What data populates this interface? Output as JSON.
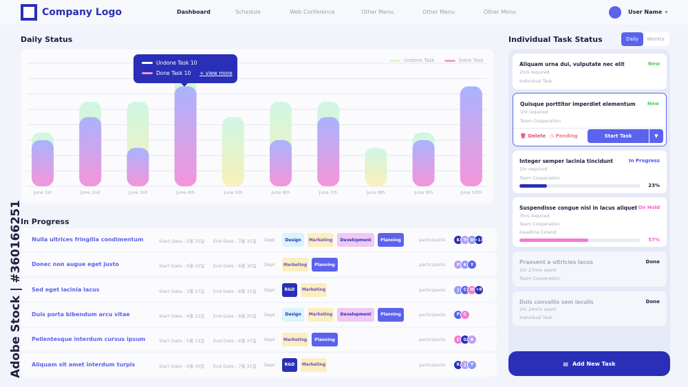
{
  "header": {
    "logo_text": "Company Logo",
    "nav": [
      "Dashboard",
      "Schedule",
      "Web Conference",
      "Other Menu",
      "Other Menu",
      "Other Menu"
    ],
    "user_name": "User Name"
  },
  "daily_status": {
    "title": "Daily Status",
    "legend": [
      "Undone Task",
      "Done Task"
    ],
    "tooltip": {
      "line1": "Undone Task 10",
      "line2": "Done Task 10",
      "link": "+ view more"
    },
    "colors": {
      "undone": "#bff2d8",
      "done_top": "#a9b3ff",
      "done_bottom": "#f595d8",
      "accent": "#2a2fb7"
    }
  },
  "chart_data": {
    "type": "bar",
    "categories": [
      "June 1st",
      "June 2nd",
      "June 3rd",
      "June 4th",
      "June 5th",
      "June 6th",
      "June 7th",
      "June 8th",
      "June 9th",
      "June 10th"
    ],
    "series": [
      {
        "name": "Undone Task",
        "values": [
          7,
          11,
          11,
          14,
          9,
          11,
          11,
          5,
          7,
          13
        ]
      },
      {
        "name": "Done Task",
        "values": [
          6,
          9,
          5,
          13,
          0,
          6,
          9,
          0,
          6,
          13
        ]
      }
    ],
    "ylim": [
      0,
      16
    ],
    "grid": true,
    "legend_position": "top-right"
  },
  "in_progress": {
    "title": "In Progress",
    "rows": [
      {
        "title": "Nulla ultrices fringilla condimentum",
        "start": "Start Date : 5월 25일",
        "end": "End Date : 7월 31일",
        "dept": "Dept",
        "tags": [
          "Design",
          "Marketing",
          "Development",
          "Planning"
        ],
        "participants": "participants",
        "avatars": [
          "K",
          "Y",
          "D",
          "+13"
        ]
      },
      {
        "title": "Donec non augue eget justo",
        "start": "Start Date : 4월 02일",
        "end": "End Date : 6월 30일",
        "dept": "Dept",
        "tags": [
          "Marketing",
          "Planning"
        ],
        "participants": "participants",
        "avatars": [
          "P",
          "K",
          "Y"
        ]
      },
      {
        "title": "Sed eget lacinia lacus",
        "start": "Start Date : 3월 17일",
        "end": "End Date : 8월 31일",
        "dept": "Dept",
        "tags": [
          "R&D",
          "Marketing"
        ],
        "participants": "participants",
        "avatars": [
          "J",
          "C",
          "H",
          "+8"
        ]
      },
      {
        "title": "Duis porta bibendum arcu vitae",
        "start": "Start Date : 4월 22일",
        "end": "End Date : 8월 20일",
        "dept": "Dept",
        "tags": [
          "Design",
          "Marketing",
          "Development",
          "Planning"
        ],
        "participants": "participants",
        "avatars": [
          "P",
          "C"
        ]
      },
      {
        "title": "Pellentesque interdum cursus ipsum",
        "start": "Start Date : 5월 11일",
        "end": "End Date : 6월 27일",
        "dept": "Dept",
        "tags": [
          "Marketing",
          "Planning"
        ],
        "participants": "participants",
        "avatars": [
          "C",
          "G",
          "R"
        ]
      },
      {
        "title": "Aliquam sit amet interdum turpis",
        "start": "Start Date : 4월 30일",
        "end": "End Date : 7월 31일",
        "dept": "Dept",
        "tags": [
          "R&D",
          "Marketing"
        ],
        "participants": "participants",
        "avatars": [
          "K",
          "J",
          "Y"
        ]
      }
    ]
  },
  "individual": {
    "title": "Individual Task Status",
    "tabs": [
      "Daily",
      "Weekly"
    ],
    "tasks": [
      {
        "title": "Aliquam urna dui, vulputate nec elit",
        "status": "New",
        "line1": "2hrs required",
        "line2": "Individual Task"
      },
      {
        "title": "Quisque porttitor imperdiet elementum",
        "status": "New",
        "line1": "1hr required",
        "line2": "Team Cooperation",
        "delete": "Delete",
        "pending": "Pending",
        "start": "Start Task"
      },
      {
        "title": "Integer semper lacinia tincidunt",
        "status": "In Progress",
        "line1": "1hr required",
        "line2": "Team Cooperation",
        "progress": "23%"
      },
      {
        "title": "Suspendisse congue nisl in lacus aliquet",
        "status": "On Hold",
        "line1": "3hrs required",
        "line2": "Team Cooperation",
        "line3": "Deadline Extend",
        "progress": "57%"
      },
      {
        "title": "Praesent a ultricies lacus",
        "status": "Done",
        "line1": "1hr 27min spent",
        "line2": "Team Cooperation"
      },
      {
        "title": "Duis convallis sem iaculis",
        "status": "Done",
        "line1": "2hr 24min spent",
        "line2": "Individual Task"
      }
    ],
    "add_button": "Add New Task"
  },
  "watermark": "Adobe Stock | #360166251"
}
